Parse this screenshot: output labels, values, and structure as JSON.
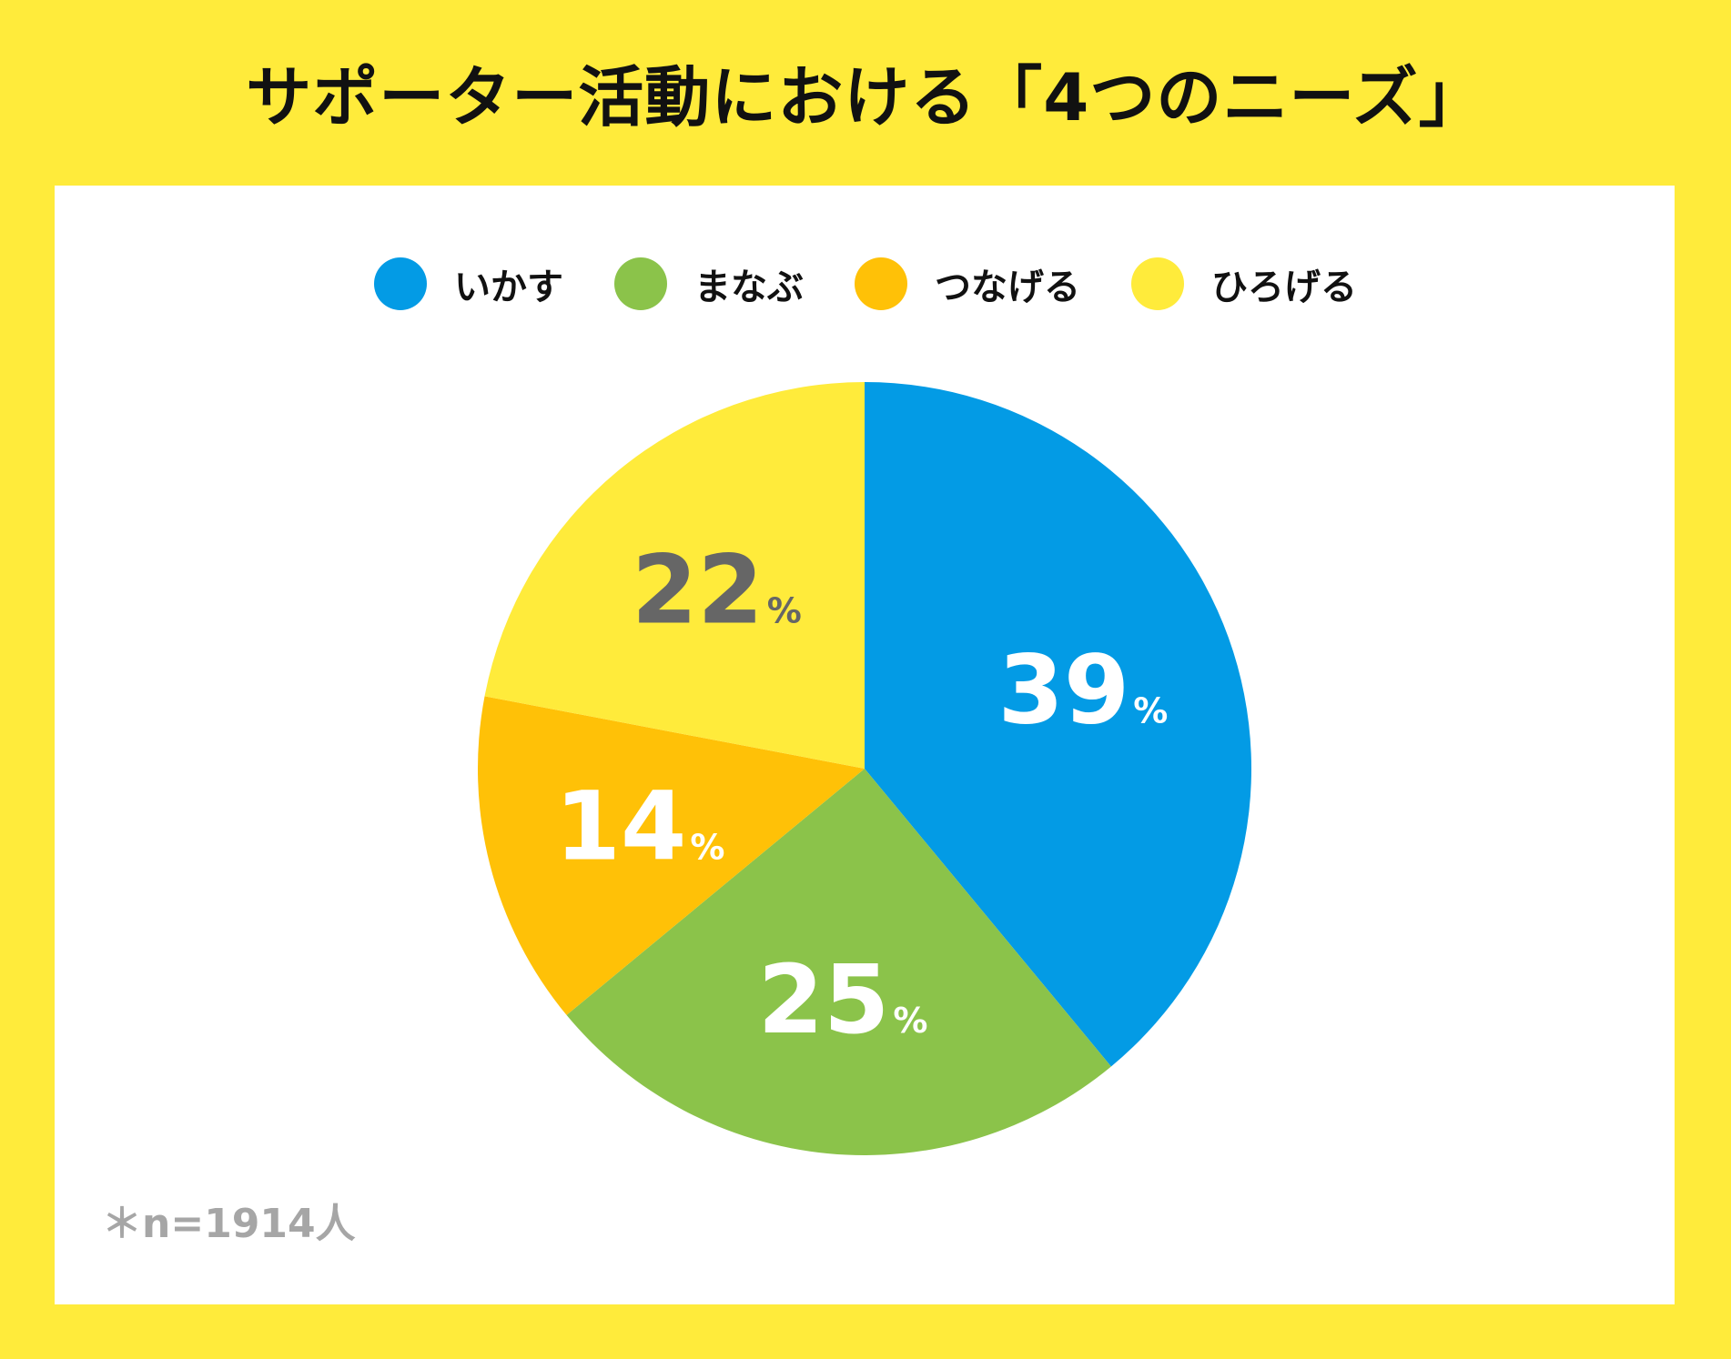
{
  "title": "サポーター活動における「4つのニーズ」",
  "note": "＊n=1914人",
  "colors": {
    "background": "#FFEB3B",
    "panel": "#FFFFFF",
    "label_dark": "#666666",
    "label_light": "#FFFFFF"
  },
  "chart_data": {
    "type": "pie",
    "title": "サポーター活動における「4つのニーズ」",
    "legend_position": "top",
    "start_angle": "12 o'clock",
    "direction": "clockwise",
    "percent_sign": "%",
    "categories": [
      "いかす",
      "まなぶ",
      "つなげる",
      "ひろげる"
    ],
    "values": [
      39,
      25,
      14,
      22
    ],
    "labels": [
      "39",
      "25",
      "14",
      "22"
    ],
    "colors": [
      "#039BE5",
      "#8BC34A",
      "#FFC107",
      "#FFEB3B"
    ],
    "label_colors": [
      "#FFFFFF",
      "#FFFFFF",
      "#FFFFFF",
      "#666666"
    ]
  }
}
